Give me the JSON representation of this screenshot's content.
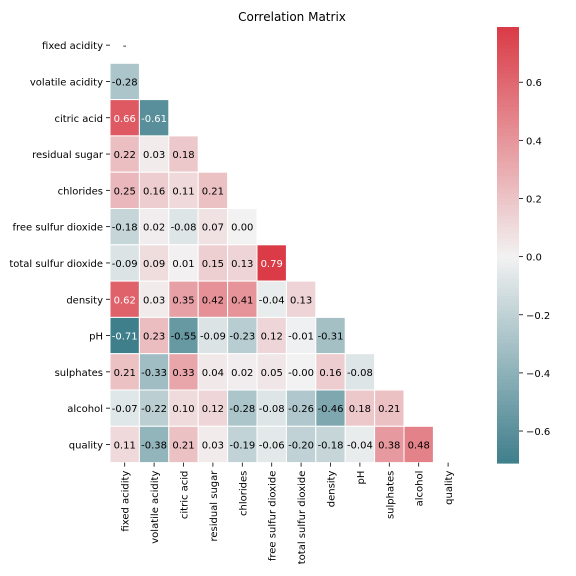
{
  "chart_data": {
    "type": "heatmap",
    "title": "Correlation Matrix",
    "variables": [
      "fixed acidity",
      "volatile acidity",
      "citric acid",
      "residual sugar",
      "chlorides",
      "free sulfur dioxide",
      "total sulfur dioxide",
      "density",
      "pH",
      "sulphates",
      "alcohol",
      "quality"
    ],
    "matrix": [
      [
        null
      ],
      [
        -0.28
      ],
      [
        0.66,
        -0.61
      ],
      [
        0.22,
        0.03,
        0.18
      ],
      [
        0.25,
        0.16,
        0.11,
        0.21
      ],
      [
        -0.18,
        0.02,
        -0.08,
        0.07,
        0.0
      ],
      [
        -0.09,
        0.09,
        0.01,
        0.15,
        0.13,
        0.79
      ],
      [
        0.62,
        0.03,
        0.35,
        0.42,
        0.41,
        -0.04,
        0.13
      ],
      [
        -0.71,
        0.23,
        -0.55,
        -0.09,
        -0.23,
        0.12,
        -0.01,
        -0.31
      ],
      [
        0.21,
        -0.33,
        0.33,
        0.04,
        0.02,
        0.05,
        -0.0,
        0.16,
        -0.08
      ],
      [
        -0.07,
        -0.22,
        0.1,
        0.12,
        -0.28,
        -0.08,
        -0.26,
        -0.46,
        0.18,
        0.21
      ],
      [
        0.11,
        -0.38,
        0.21,
        0.03,
        -0.19,
        -0.06,
        -0.2,
        -0.18,
        -0.04,
        0.38,
        0.48
      ]
    ],
    "color_range": [
      -0.71,
      0.79
    ],
    "colorbar_ticks": [
      "0.6",
      "0.4",
      "0.2",
      "0.0",
      "−0.2",
      "−0.4",
      "−0.6"
    ],
    "colorbar_tick_values": [
      0.6,
      0.4,
      0.2,
      0.0,
      -0.2,
      -0.4,
      -0.6
    ],
    "colors": {
      "negative": "#3f7f8c",
      "center": "#f2f2f2",
      "positive": "#da3b46"
    }
  }
}
